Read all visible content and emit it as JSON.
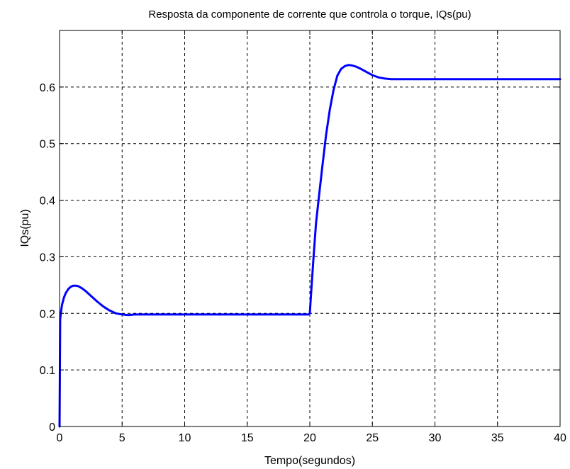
{
  "chart_data": {
    "type": "line",
    "title": "Resposta da componente de corrente que controla o torque, IQs(pu)",
    "xlabel": "Tempo(segundos)",
    "ylabel": "IQs(pu)",
    "xlim": [
      0,
      40
    ],
    "ylim": [
      0,
      0.7
    ],
    "xticks": [
      0,
      5,
      10,
      15,
      20,
      25,
      30,
      35,
      40
    ],
    "yticks": [
      0,
      0.1,
      0.2,
      0.3,
      0.4,
      0.5,
      0.6
    ],
    "xtick_labels": [
      "0",
      "5",
      "10",
      "15",
      "20",
      "25",
      "30",
      "35",
      "40"
    ],
    "ytick_labels": [
      "0",
      "0.1",
      "0.2",
      "0.3",
      "0.4",
      "0.5",
      "0.6"
    ],
    "grid": true,
    "line_color": "#0000ff",
    "series": [
      {
        "x": [
          0,
          0.05,
          0.1,
          0.2,
          0.35,
          0.5,
          0.7,
          0.9,
          1.1,
          1.3,
          1.5,
          1.8,
          2.1,
          2.5,
          3.0,
          3.5,
          4.0,
          4.5,
          5.0,
          5.5,
          6.0,
          10,
          15,
          19.9,
          20.0,
          20.1,
          20.3,
          20.5,
          20.8,
          21.0,
          21.3,
          21.6,
          21.9,
          22.2,
          22.5,
          22.8,
          23.1,
          23.4,
          23.7,
          24.0,
          24.5,
          25.0,
          25.5,
          26.0,
          26.5,
          27.0,
          30,
          35,
          40
        ],
        "y": [
          0,
          0.19,
          0.2,
          0.215,
          0.228,
          0.236,
          0.243,
          0.247,
          0.249,
          0.249,
          0.248,
          0.244,
          0.239,
          0.231,
          0.221,
          0.212,
          0.205,
          0.2,
          0.198,
          0.197,
          0.198,
          0.198,
          0.198,
          0.198,
          0.2,
          0.235,
          0.3,
          0.36,
          0.42,
          0.46,
          0.515,
          0.56,
          0.595,
          0.62,
          0.632,
          0.637,
          0.639,
          0.638,
          0.636,
          0.633,
          0.627,
          0.621,
          0.617,
          0.615,
          0.614,
          0.614,
          0.614,
          0.614,
          0.614
        ]
      }
    ]
  }
}
